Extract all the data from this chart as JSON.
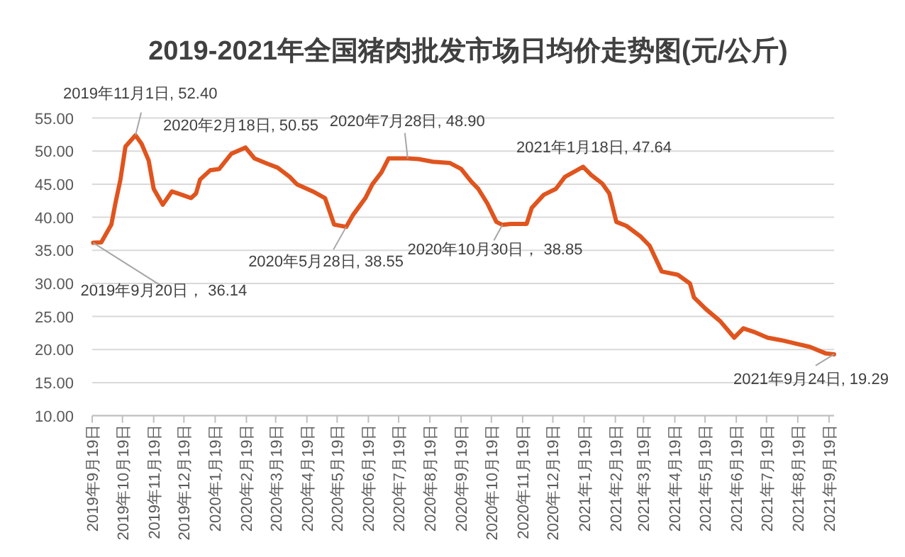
{
  "chart_data": {
    "type": "line",
    "title": "2019-2021年全国猪肉批发市场日均价走势图(元/公斤)",
    "x": [
      "2019-09-20",
      "2019-09-28",
      "2019-10-08",
      "2019-10-12",
      "2019-10-17",
      "2019-10-22",
      "2019-11-01",
      "2019-11-07",
      "2019-11-14",
      "2019-11-19",
      "2019-11-28",
      "2019-12-07",
      "2019-12-17",
      "2019-12-26",
      "2019-12-31",
      "2020-01-04",
      "2020-01-14",
      "2020-01-23",
      "2020-02-04",
      "2020-02-18",
      "2020-02-27",
      "2020-03-09",
      "2020-03-21",
      "2020-04-02",
      "2020-04-09",
      "2020-04-25",
      "2020-05-07",
      "2020-05-16",
      "2020-05-28",
      "2020-06-04",
      "2020-06-16",
      "2020-06-23",
      "2020-07-02",
      "2020-07-09",
      "2020-07-28",
      "2020-08-08",
      "2020-08-22",
      "2020-09-08",
      "2020-09-19",
      "2020-09-29",
      "2020-10-06",
      "2020-10-15",
      "2020-10-24",
      "2020-10-30",
      "2020-11-07",
      "2020-11-23",
      "2020-11-28",
      "2020-12-10",
      "2020-12-22",
      "2020-12-31",
      "2021-01-18",
      "2021-01-26",
      "2021-02-06",
      "2021-02-13",
      "2021-02-20",
      "2021-03-02",
      "2021-03-16",
      "2021-03-25",
      "2021-04-06",
      "2021-04-22",
      "2021-05-04",
      "2021-05-08",
      "2021-05-20",
      "2021-06-03",
      "2021-06-17",
      "2021-06-26",
      "2021-07-06",
      "2021-07-20",
      "2021-08-03",
      "2021-08-17",
      "2021-08-31",
      "2021-09-16",
      "2021-09-24"
    ],
    "series": [
      {
        "color": "#e0541e",
        "values": [
          36.14,
          36.2,
          38.9,
          42.1,
          45.7,
          50.7,
          52.4,
          51.1,
          48.6,
          44.3,
          41.9,
          43.9,
          43.4,
          42.9,
          43.6,
          45.7,
          47.1,
          47.3,
          49.6,
          50.55,
          48.9,
          48.2,
          47.5,
          46.1,
          45.0,
          43.9,
          42.9,
          38.9,
          38.55,
          40.4,
          42.9,
          45.0,
          46.8,
          48.9,
          48.9,
          48.8,
          48.4,
          48.2,
          47.3,
          45.4,
          44.3,
          42.1,
          39.3,
          38.85,
          39.0,
          39.0,
          41.4,
          43.4,
          44.3,
          46.1,
          47.64,
          46.4,
          45.1,
          43.6,
          39.3,
          38.7,
          37.1,
          35.7,
          31.8,
          31.3,
          30.0,
          27.9,
          26.1,
          24.3,
          21.8,
          23.2,
          22.7,
          21.8,
          21.4,
          20.9,
          20.4,
          19.4,
          19.29
        ]
      }
    ],
    "xlim": [
      "2019-09-19",
      "2021-09-24"
    ],
    "xticks": [
      {
        "value": "2019-09-19",
        "label": "2019年9月19日"
      },
      {
        "value": "2019-10-19",
        "label": "2019年10月19日"
      },
      {
        "value": "2019-11-19",
        "label": "2019年11月19日"
      },
      {
        "value": "2019-12-19",
        "label": "2019年12月19日"
      },
      {
        "value": "2020-01-19",
        "label": "2020年1月19日"
      },
      {
        "value": "2020-02-19",
        "label": "2020年2月19日"
      },
      {
        "value": "2020-03-19",
        "label": "2020年3月19日"
      },
      {
        "value": "2020-04-19",
        "label": "2020年4月19日"
      },
      {
        "value": "2020-05-19",
        "label": "2020年5月19日"
      },
      {
        "value": "2020-06-19",
        "label": "2020年6月19日"
      },
      {
        "value": "2020-07-19",
        "label": "2020年7月19日"
      },
      {
        "value": "2020-08-19",
        "label": "2020年8月19日"
      },
      {
        "value": "2020-09-19",
        "label": "2020年9月19日"
      },
      {
        "value": "2020-10-19",
        "label": "2020年10月19日"
      },
      {
        "value": "2020-11-19",
        "label": "2020年11月19日"
      },
      {
        "value": "2020-12-19",
        "label": "2020年12月19日"
      },
      {
        "value": "2021-01-19",
        "label": "2021年1月19日"
      },
      {
        "value": "2021-02-19",
        "label": "2021年2月19日"
      },
      {
        "value": "2021-03-19",
        "label": "2021年3月19日"
      },
      {
        "value": "2021-04-19",
        "label": "2021年4月19日"
      },
      {
        "value": "2021-05-19",
        "label": "2021年5月19日"
      },
      {
        "value": "2021-06-19",
        "label": "2021年6月19日"
      },
      {
        "value": "2021-07-19",
        "label": "2021年7月19日"
      },
      {
        "value": "2021-08-19",
        "label": "2021年8月19日"
      },
      {
        "value": "2021-09-19",
        "label": "2021年9月19日"
      }
    ],
    "ylim": [
      10,
      55
    ],
    "yticks": [
      {
        "value": 10,
        "label": "10.00"
      },
      {
        "value": 15,
        "label": "15.00"
      },
      {
        "value": 20,
        "label": "20.00"
      },
      {
        "value": 25,
        "label": "25.00"
      },
      {
        "value": 30,
        "label": "30.00"
      },
      {
        "value": 35,
        "label": "35.00"
      },
      {
        "value": 40,
        "label": "40.00"
      },
      {
        "value": 45,
        "label": "45.00"
      },
      {
        "value": 50,
        "label": "50.00"
      },
      {
        "value": 55,
        "label": "55.00"
      }
    ],
    "grid": "y",
    "marker": "none",
    "line_style": "solid",
    "annotations": [
      {
        "text": "2019年9月20日， 36.14",
        "x": "2019-09-20",
        "y": 36.14
      },
      {
        "text": "2019年11月1日, 52.40",
        "x": "2019-11-01",
        "y": 52.4
      },
      {
        "text": "2020年2月18日, 50.55",
        "x": "2020-02-18",
        "y": 50.55
      },
      {
        "text": "2020年5月28日, 38.55",
        "x": "2020-05-28",
        "y": 38.55
      },
      {
        "text": "2020年7月28日, 48.90",
        "x": "2020-07-28",
        "y": 48.9
      },
      {
        "text": "2020年10月30日， 38.85",
        "x": "2020-10-30",
        "y": 38.85
      },
      {
        "text": "2021年1月18日, 47.64",
        "x": "2021-01-18",
        "y": 47.64
      },
      {
        "text": "2021年9月24日, 19.29",
        "x": "2021-09-24",
        "y": 19.29
      }
    ]
  }
}
